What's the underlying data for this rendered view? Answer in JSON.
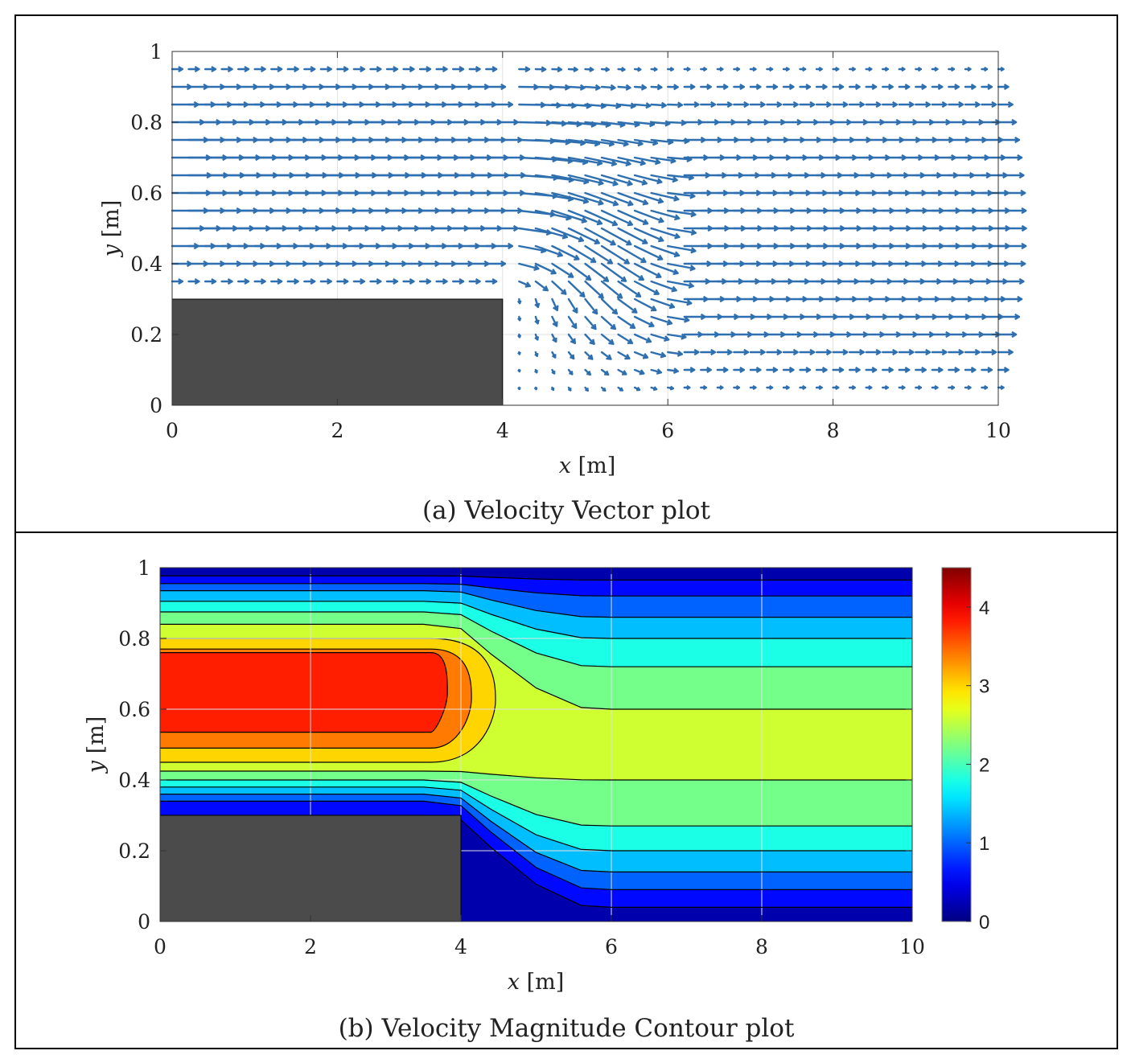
{
  "colors": {
    "arrow": "#2e6fb0",
    "obstacle": "#4b4b4b",
    "frame": "#000000",
    "grid": "#e2e2e2"
  },
  "chart_data": [
    {
      "type": "quiver",
      "caption": "(a) Velocity Vector plot",
      "xlabel_var": "x",
      "xlabel_unit": "[m]",
      "ylabel_var": "y",
      "ylabel_unit": "[m]",
      "xlim": [
        0,
        10
      ],
      "ylim": [
        0,
        1
      ],
      "xticks": [
        0,
        2,
        4,
        6,
        8,
        10
      ],
      "yticks": [
        0,
        0.2,
        0.4,
        0.6,
        0.8,
        1
      ],
      "ytick_labels": [
        "0",
        "0.2",
        "0.4",
        "0.6",
        "0.8",
        "1"
      ],
      "grid": true,
      "obstacle": {
        "x": [
          0,
          4
        ],
        "y": [
          0,
          0.3
        ]
      },
      "field": {
        "inlet_x": [
          0,
          4
        ],
        "inlet_y": [
          0.3,
          1.0
        ],
        "inlet_peak_y": 0.65,
        "outlet_peak_y": 0.5,
        "inlet_peak_speed": 4.2,
        "outlet_peak_speed": 3.0,
        "transition_x": [
          4,
          6
        ],
        "sample_dx": 0.2,
        "sample_dy": 0.05
      }
    },
    {
      "type": "contour",
      "caption": "(b) Velocity Magnitude Contour plot",
      "xlabel_var": "x",
      "xlabel_unit": "[m]",
      "ylabel_var": "y",
      "ylabel_unit": "[m]",
      "xlim": [
        0,
        10
      ],
      "ylim": [
        0,
        1
      ],
      "xticks": [
        0,
        2,
        4,
        6,
        8,
        10
      ],
      "yticks": [
        0,
        0.2,
        0.4,
        0.6,
        0.8,
        1
      ],
      "ytick_labels": [
        "0",
        "0.2",
        "0.4",
        "0.6",
        "0.8",
        "1"
      ],
      "colorbar": {
        "range": [
          0,
          4.5
        ],
        "ticks": [
          0,
          1,
          2,
          3,
          4
        ],
        "colormap": "jet"
      },
      "obstacle": {
        "x": [
          0,
          4
        ],
        "y": [
          0,
          0.3
        ]
      },
      "levels": [
        0.4,
        0.8,
        1.2,
        1.6,
        2.0,
        2.4,
        2.8,
        3.2,
        3.6,
        4.0
      ],
      "band_values": [
        0.2,
        0.6,
        1.0,
        1.4,
        1.8,
        2.2,
        2.6,
        3.0,
        3.4,
        3.8,
        4.2
      ],
      "level_positions": [
        {
          "level": 0.4,
          "left_low_y": 0.3,
          "left_high_y": 0.977,
          "right_low_y": 0.04,
          "right_high_y": 0.965
        },
        {
          "level": 0.8,
          "left_low_y": 0.34,
          "left_high_y": 0.955,
          "right_low_y": 0.09,
          "right_high_y": 0.92
        },
        {
          "level": 1.2,
          "left_low_y": 0.36,
          "left_high_y": 0.935,
          "right_low_y": 0.14,
          "right_high_y": 0.86
        },
        {
          "level": 1.6,
          "left_low_y": 0.38,
          "left_high_y": 0.905,
          "right_low_y": 0.2,
          "right_high_y": 0.8
        },
        {
          "level": 2.0,
          "left_low_y": 0.4,
          "left_high_y": 0.875,
          "right_low_y": 0.27,
          "right_high_y": 0.72
        },
        {
          "level": 2.4,
          "left_low_y": 0.425,
          "left_high_y": 0.84,
          "right_low_y": 0.4,
          "right_high_y": 0.6
        },
        {
          "level": 2.8,
          "left_low_y": 0.45,
          "left_high_y": 0.8
        },
        {
          "level": 3.2,
          "left_low_y": 0.49,
          "left_high_y": 0.77
        },
        {
          "level": 3.6,
          "left_low_y": 0.535,
          "left_high_y": 0.76
        }
      ]
    }
  ]
}
